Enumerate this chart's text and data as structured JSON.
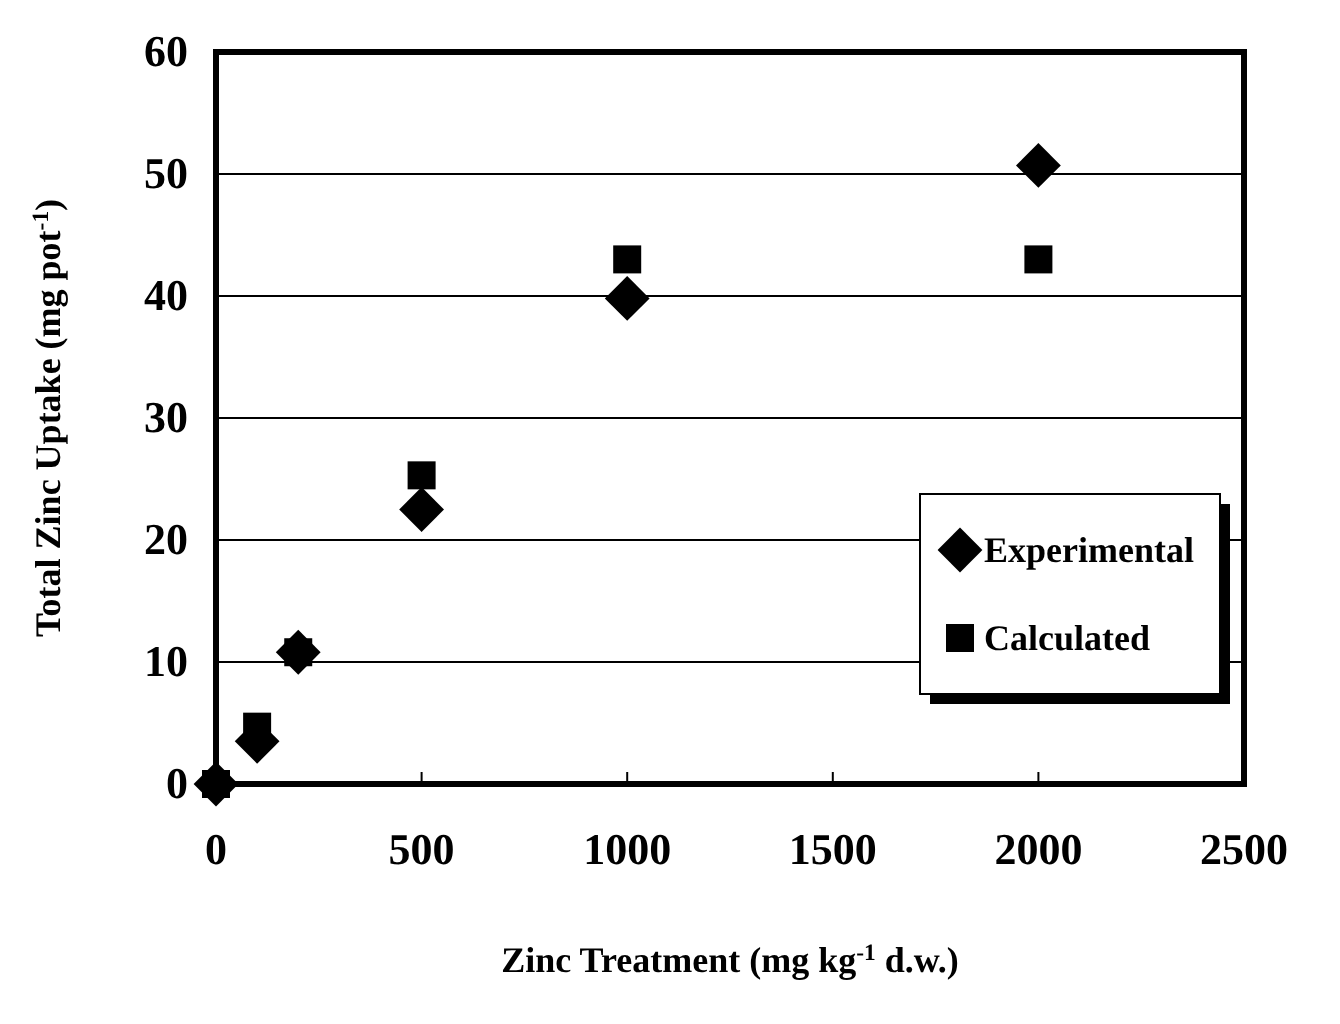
{
  "chart_data": {
    "type": "scatter",
    "xlabel": "Zinc Treatment (mg kg$^{-1}$ d.w.)",
    "ylabel": "Total Zinc Uptake (mg pot$^{-1}$)",
    "x": [
      0,
      100,
      200,
      500,
      1000,
      2000
    ],
    "series": [
      {
        "name": "Experimental",
        "color": "#000000",
        "marker": "diamond",
        "values": [
          0,
          3.5,
          10.8,
          22.5,
          39.8,
          50.7
        ]
      },
      {
        "name": "Calculated",
        "color": "#000000",
        "marker": "square",
        "values": [
          0,
          4.7,
          10.8,
          25.3,
          43,
          43
        ]
      }
    ],
    "xlim": [
      0,
      2500
    ],
    "xticks": [
      0,
      500,
      1000,
      1500,
      2000,
      2500
    ],
    "ylim": [
      0,
      60
    ],
    "yticks": [
      0,
      10,
      20,
      30,
      40,
      50,
      60
    ],
    "grid": "y",
    "legend": "bottom right"
  }
}
